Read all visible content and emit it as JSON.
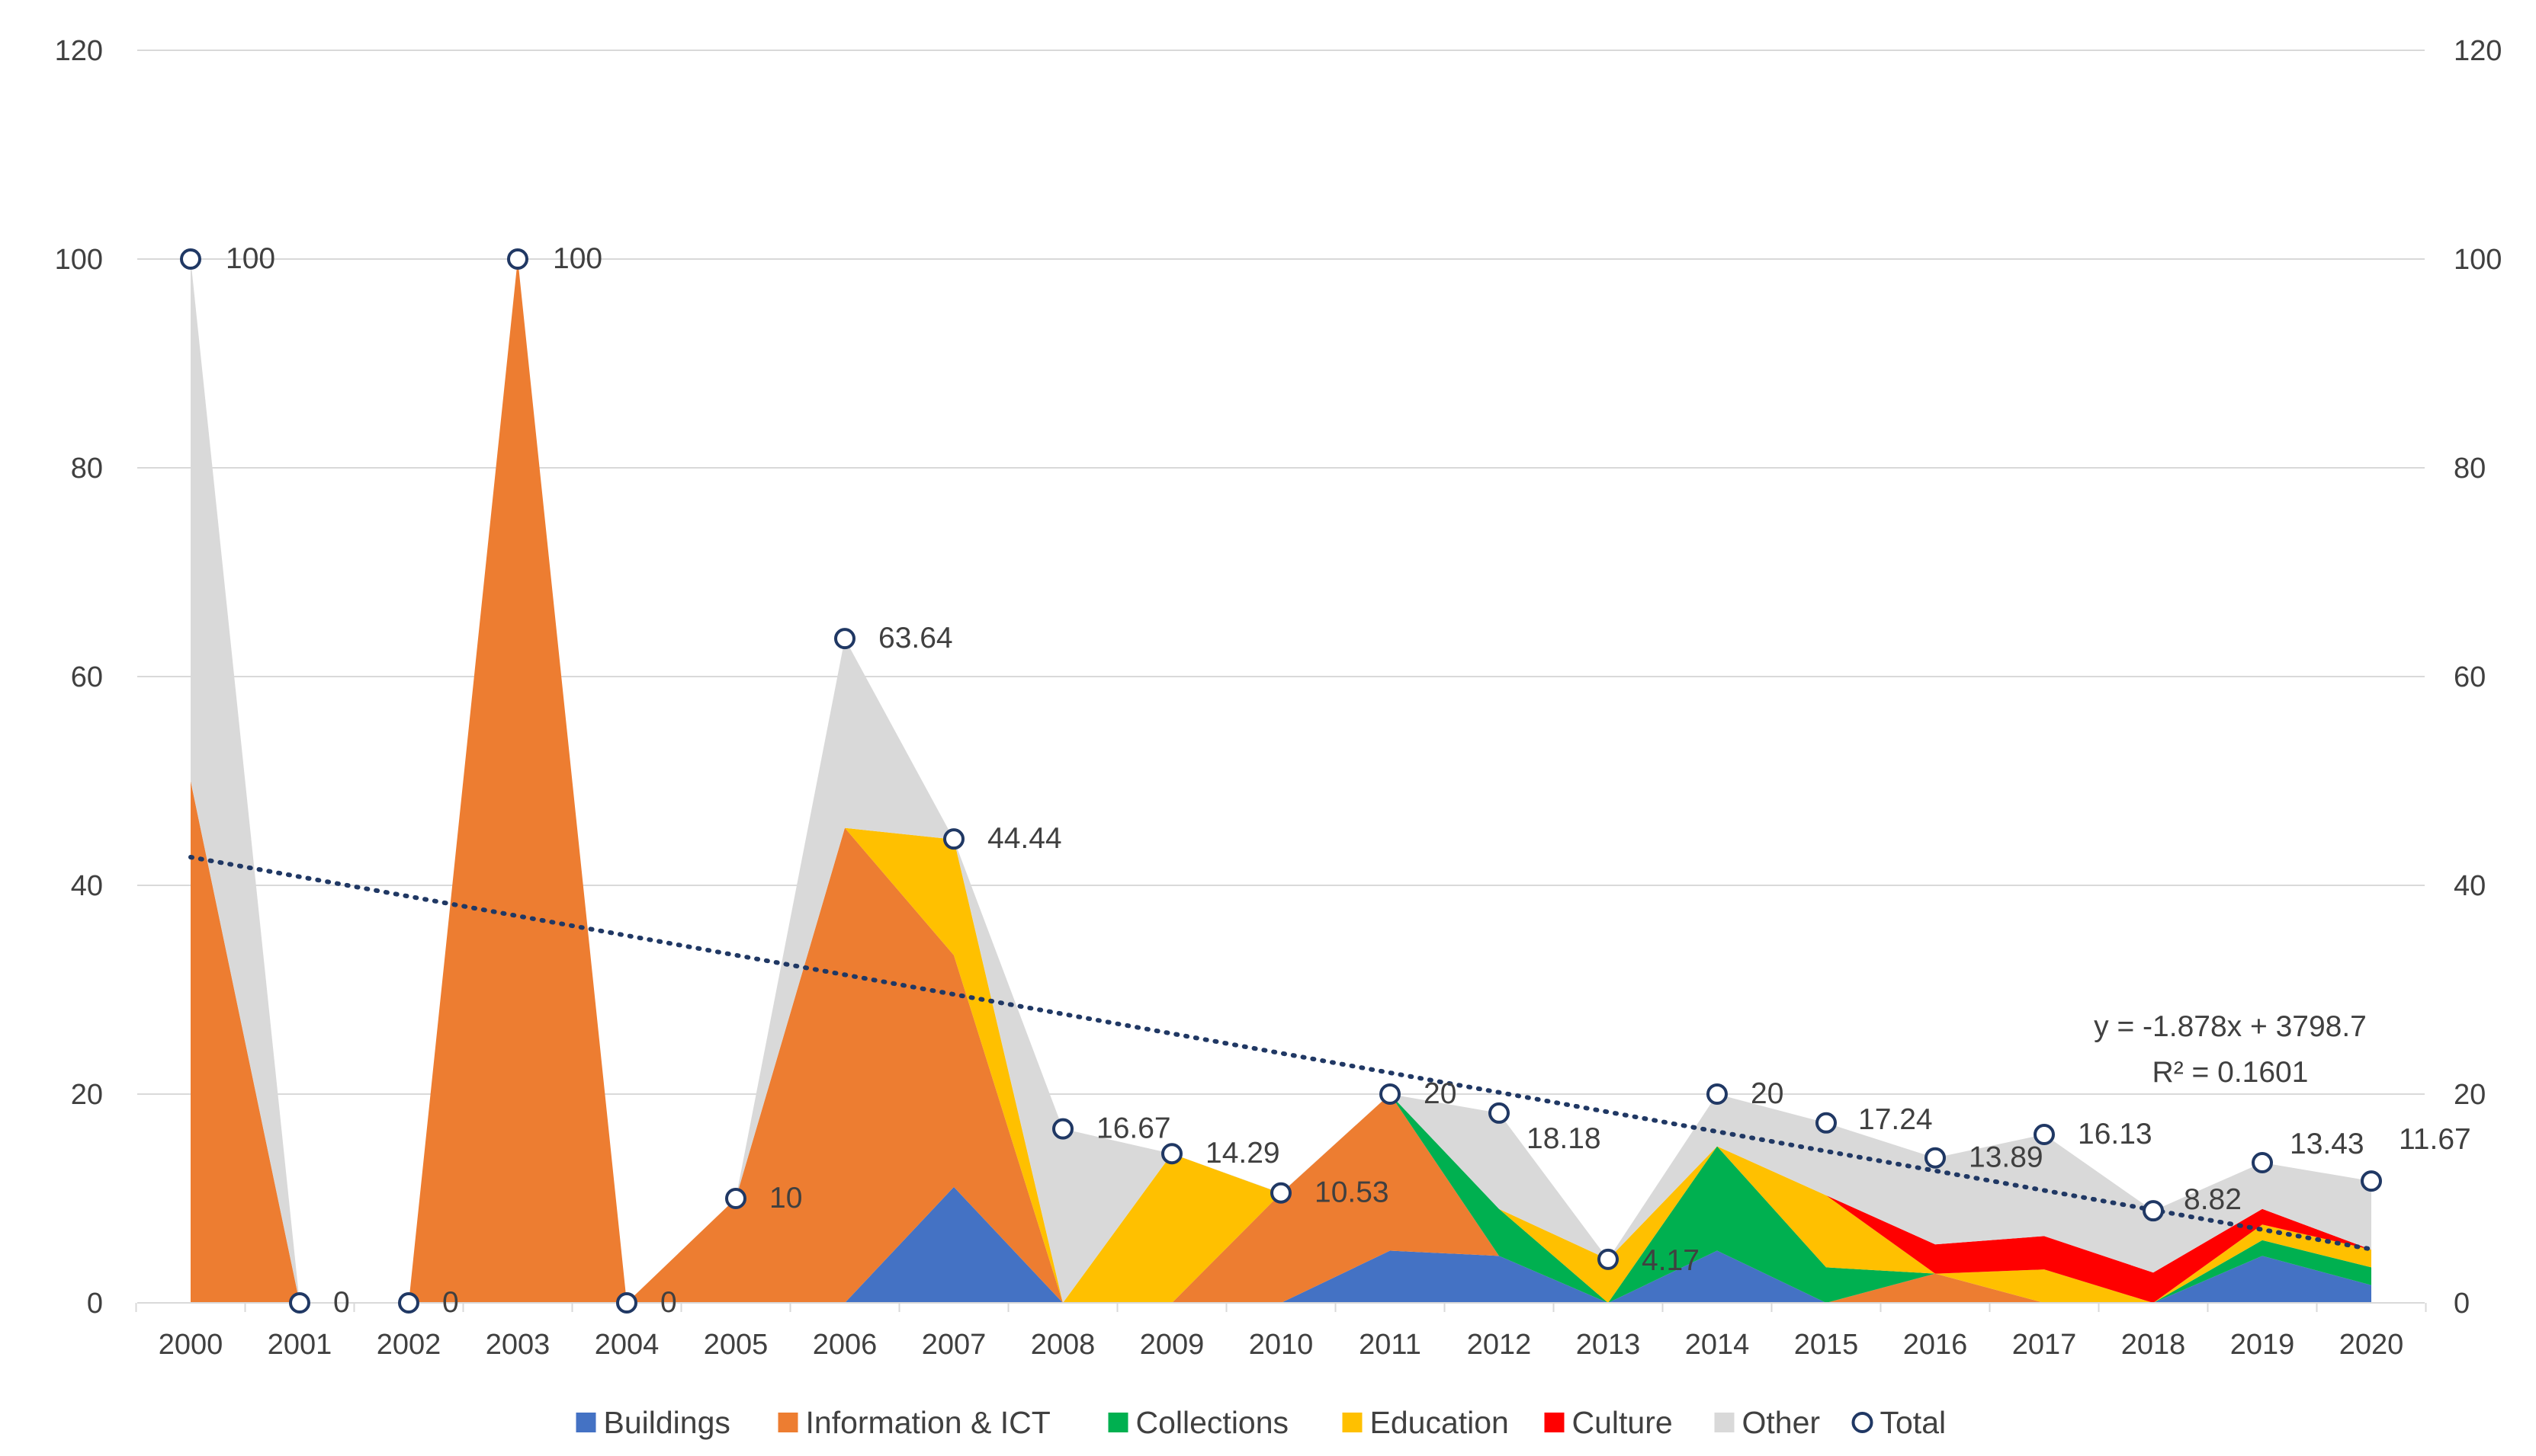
{
  "chart_data": {
    "type": "area",
    "title": "",
    "xlabel": "",
    "ylabel": "",
    "ylim": [
      0,
      120
    ],
    "yticks": [
      "0",
      "20",
      "40",
      "60",
      "80",
      "100",
      "120"
    ],
    "categories": [
      "2000",
      "2001",
      "2002",
      "2003",
      "2004",
      "2005",
      "2006",
      "2007",
      "2008",
      "2009",
      "2010",
      "2011",
      "2012",
      "2013",
      "2014",
      "2015",
      "2016",
      "2017",
      "2018",
      "2019",
      "2020"
    ],
    "series": [
      {
        "name": "Buildings",
        "color": "#4472C4",
        "values": [
          0,
          0,
          0,
          0,
          0,
          0,
          0,
          11.1,
          0,
          0,
          0,
          5,
          4.5,
          0,
          5,
          0,
          0,
          0,
          0,
          4.5,
          1.7
        ]
      },
      {
        "name": "Information & ICT",
        "color": "#ED7D31",
        "values": [
          50,
          0,
          0,
          100,
          0,
          10,
          45.5,
          22.2,
          0,
          0,
          10.5,
          15,
          0,
          0,
          0,
          0,
          2.8,
          0,
          0,
          0,
          0
        ]
      },
      {
        "name": "Collections",
        "color": "#00B050",
        "values": [
          0,
          0,
          0,
          0,
          0,
          0,
          0,
          0,
          0,
          0,
          0,
          0,
          4.5,
          0,
          10,
          3.4,
          0,
          0,
          0,
          1.5,
          1.7
        ]
      },
      {
        "name": "Education",
        "color": "#FFC000",
        "values": [
          0,
          0,
          0,
          0,
          0,
          0,
          0,
          11.1,
          0,
          14.29,
          0,
          0,
          0,
          4.17,
          0,
          6.9,
          0,
          3.2,
          0,
          1.5,
          1.7
        ]
      },
      {
        "name": "Culture",
        "color": "#FF0000",
        "values": [
          0,
          0,
          0,
          0,
          0,
          0,
          0,
          0,
          0,
          0,
          0,
          0,
          0,
          0,
          0,
          0,
          2.8,
          3.2,
          2.9,
          1.5,
          0
        ]
      },
      {
        "name": "Other",
        "color": "#D9D9D9",
        "values": [
          50,
          0,
          0,
          0,
          0,
          0,
          18.14,
          0,
          16.67,
          0,
          0.03,
          0,
          9.18,
          0,
          5,
          6.94,
          8.29,
          9.73,
          5.92,
          4.43,
          6.57
        ]
      }
    ],
    "total": {
      "name": "Total",
      "values": [
        100,
        0,
        0,
        100,
        0,
        10,
        63.64,
        44.44,
        16.67,
        14.29,
        10.53,
        20,
        18.18,
        4.17,
        20,
        17.24,
        13.89,
        16.13,
        8.82,
        13.43,
        11.67
      ],
      "labels": [
        "100",
        "0",
        "0",
        "100",
        "0",
        "10",
        "63.64",
        "44.44",
        "16.67",
        "14.29",
        "10.53",
        "20",
        "18.18",
        "4.17",
        "20",
        "17.24",
        "13.89",
        "16.13",
        "8.82",
        "13.43",
        "11.67"
      ]
    },
    "trendline": {
      "style": "dotted",
      "color": "#203864",
      "slope": -1.878,
      "intercept": 3798.7,
      "equation": "y = -1.878x + 3798.7",
      "r_squared": "R² = 0.1601"
    },
    "legend": [
      "Buildings",
      "Information & ICT",
      "Collections",
      "Education",
      "Culture",
      "Other",
      "Total"
    ],
    "legend_position": "bottom",
    "grid": true,
    "secondary_axis": true
  }
}
